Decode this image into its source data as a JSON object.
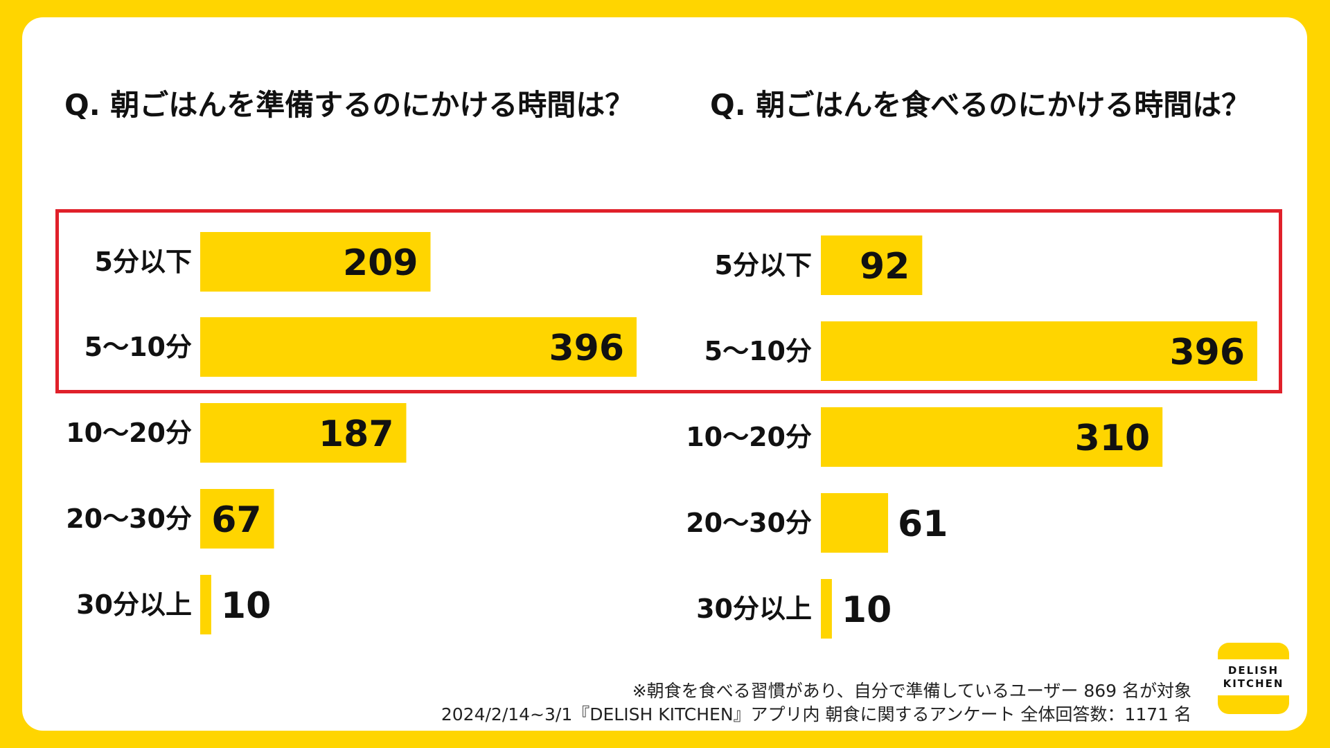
{
  "colors": {
    "background": "#FFD500",
    "bar": "#FFD500",
    "highlight": "#E0202A",
    "text": "#111111"
  },
  "charts": {
    "left": {
      "question": "Q. 朝ごはんを準備するのにかける時間は？"
    },
    "right": {
      "question": "Q. 朝ごはんを食べるのにかける時間は？"
    }
  },
  "chart_data": [
    {
      "type": "bar",
      "orientation": "horizontal",
      "title": "Q. 朝ごはんを準備するのにかける時間は？",
      "categories": [
        "5分以下",
        "5〜10分",
        "10〜20分",
        "20〜30分",
        "30分以上"
      ],
      "values": [
        209,
        396,
        187,
        67,
        10
      ],
      "highlighted_categories": [
        "5分以下",
        "5〜10分"
      ],
      "grid": false
    },
    {
      "type": "bar",
      "orientation": "horizontal",
      "title": "Q. 朝ごはんを食べるのにかける時間は？",
      "categories": [
        "5分以下",
        "5〜10分",
        "10〜20分",
        "20〜30分",
        "30分以上"
      ],
      "values": [
        92,
        396,
        310,
        61,
        10
      ],
      "highlighted_categories": [
        "5分以下",
        "5〜10分"
      ],
      "grid": false
    }
  ],
  "footnotes": {
    "line1": "※朝食を食べる習慣があり、自分で準備しているユーザー 869 名が対象",
    "line2": "2024/2/14~3/1『DELISH KITCHEN』アプリ内 朝食に関するアンケート 全体回答数：1171 名"
  },
  "logo": {
    "line1": "DELISH",
    "line2": "KITCHEN"
  }
}
